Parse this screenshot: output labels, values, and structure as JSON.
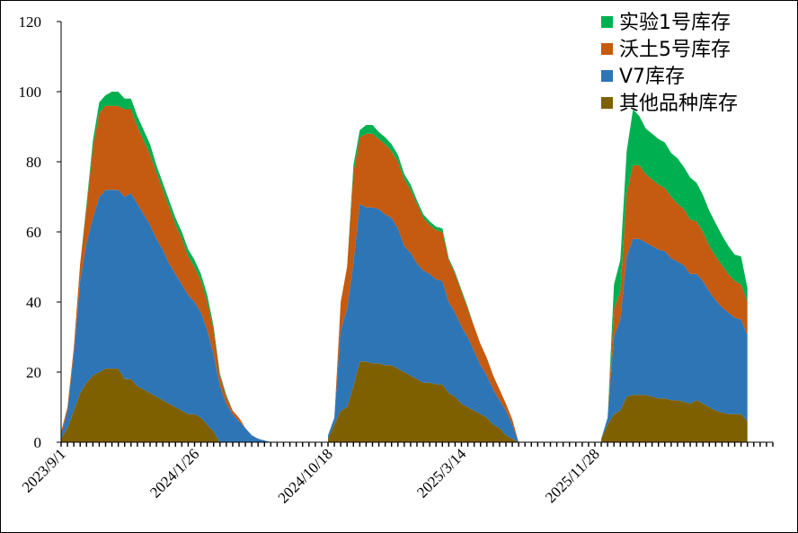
{
  "chart_data": {
    "type": "area",
    "stacked": true,
    "title": "",
    "xlabel": "",
    "ylabel": "",
    "ylim": [
      0,
      120
    ],
    "yticks": [
      0,
      20,
      40,
      60,
      80,
      100,
      120
    ],
    "x_tick_labels": [
      "2023/9/1",
      "2024/1/26",
      "2024/10/18",
      "2025/3/14",
      "2025/11/28"
    ],
    "x_tick_label_index": [
      0,
      21,
      42,
      63,
      84
    ],
    "legend_position": "top-right",
    "n_points": 113,
    "series": [
      {
        "name": "其他品种库存",
        "color": "#7f6000",
        "segments": [
          {
            "start": 0,
            "values": [
              1,
              4,
              9,
              14,
              17,
              19,
              20,
              21,
              21,
              21,
              18,
              18,
              16,
              15,
              14,
              13,
              12,
              11,
              10,
              9,
              8,
              8,
              7,
              5,
              3,
              0,
              0,
              0,
              0,
              0,
              0,
              0,
              0,
              0,
              0
            ]
          },
          {
            "start": 42,
            "values": [
              1,
              5,
              9,
              10,
              16,
              23,
              23,
              22.5,
              22.5,
              22,
              22,
              21,
              20,
              19,
              18,
              17,
              17,
              16.5,
              16.5,
              14,
              13,
              11,
              10,
              9,
              8,
              7,
              5,
              4,
              2,
              1,
              0
            ]
          },
          {
            "start": 85,
            "values": [
              1,
              5,
              8,
              9,
              13,
              13.5,
              13.5,
              13.5,
              13,
              12.5,
              12.5,
              12,
              12,
              11.5,
              11,
              12,
              11,
              10,
              9,
              8.5,
              8,
              8,
              8,
              6
            ]
          }
        ]
      },
      {
        "name": "V7库存",
        "color": "#2e75b6",
        "segments": [
          {
            "start": 0,
            "values": [
              1,
              5,
              16,
              32,
              40,
              45,
              50,
              51,
              51,
              51,
              52,
              53,
              52,
              50,
              48,
              45,
              43,
              40,
              38,
              36,
              34,
              32,
              30,
              27,
              22,
              16,
              11,
              8,
              6,
              4,
              2,
              1,
              0.5,
              0,
              0
            ]
          },
          {
            "start": 42,
            "values": [
              1,
              2,
              23,
              28,
              35,
              45,
              44,
              44.5,
              44,
              43,
              42,
              40,
              36,
              35,
              33,
              32,
              31,
              30,
              29.5,
              26,
              24,
              22,
              20,
              17,
              14,
              12,
              10,
              8,
              7,
              4,
              0
            ]
          },
          {
            "start": 85,
            "values": [
              0,
              2,
              22,
              26,
              40,
              44.5,
              44.5,
              43.5,
              43,
              42.5,
              42,
              40.5,
              39.5,
              39,
              37,
              36,
              35,
              33,
              31.5,
              30,
              29,
              27.5,
              27,
              24.5
            ]
          }
        ]
      },
      {
        "name": "沃土5号库存",
        "color": "#c55a11",
        "segments": [
          {
            "start": 0,
            "values": [
              1,
              1,
              2,
              5,
              10,
              20,
              24,
              24,
              24,
              24,
              25,
              24,
              22,
              21,
              20,
              19,
              17,
              16,
              14,
              13,
              11,
              10,
              9,
              8,
              7,
              3,
              2,
              1,
              1,
              0,
              0,
              0,
              0,
              0,
              0
            ]
          },
          {
            "start": 42,
            "values": [
              0,
              0,
              8,
              12,
              26,
              19,
              21,
              21,
              20,
              20,
              19,
              19,
              19,
              18,
              17,
              15,
              14,
              14,
              14,
              12,
              11,
              10,
              8,
              7,
              6,
              5,
              4,
              3,
              2,
              1.5,
              0
            ]
          },
          {
            "start": 85,
            "values": [
              0,
              0,
              8,
              8,
              18,
              21,
              21,
              19.5,
              19,
              18.5,
              18,
              17.5,
              16.5,
              16,
              15.5,
              15,
              14,
              13,
              12.5,
              12,
              11,
              10.5,
              10,
              9.5
            ]
          }
        ]
      },
      {
        "name": "实验1号库存",
        "color": "#00b050",
        "segments": [
          {
            "start": 0,
            "values": [
              0,
              0,
              0,
              0,
              1,
              2,
              3,
              3,
              4,
              4,
              3,
              3,
              3,
              3,
              3,
              2,
              2,
              2,
              2,
              2,
              2,
              2,
              2,
              2,
              1,
              0.5,
              0.5,
              0,
              0,
              0,
              0,
              0,
              0,
              0,
              0
            ]
          },
          {
            "start": 42,
            "values": [
              0,
              0,
              0,
              0,
              2,
              2,
              2.5,
              2.5,
              2,
              2,
              2,
              2,
              1.5,
              1.5,
              1,
              1,
              1,
              1,
              1,
              0.5,
              0.5,
              0.5,
              0.5,
              0,
              0,
              0,
              0,
              0,
              0,
              0,
              0
            ]
          },
          {
            "start": 85,
            "values": [
              0,
              0,
              7,
              9,
              12,
              16,
              14,
              13,
              13,
              13,
              13,
              12.5,
              13,
              12,
              12,
              11,
              10.5,
              10,
              9.5,
              8.5,
              8,
              7.5,
              8,
              4
            ]
          }
        ]
      }
    ]
  }
}
